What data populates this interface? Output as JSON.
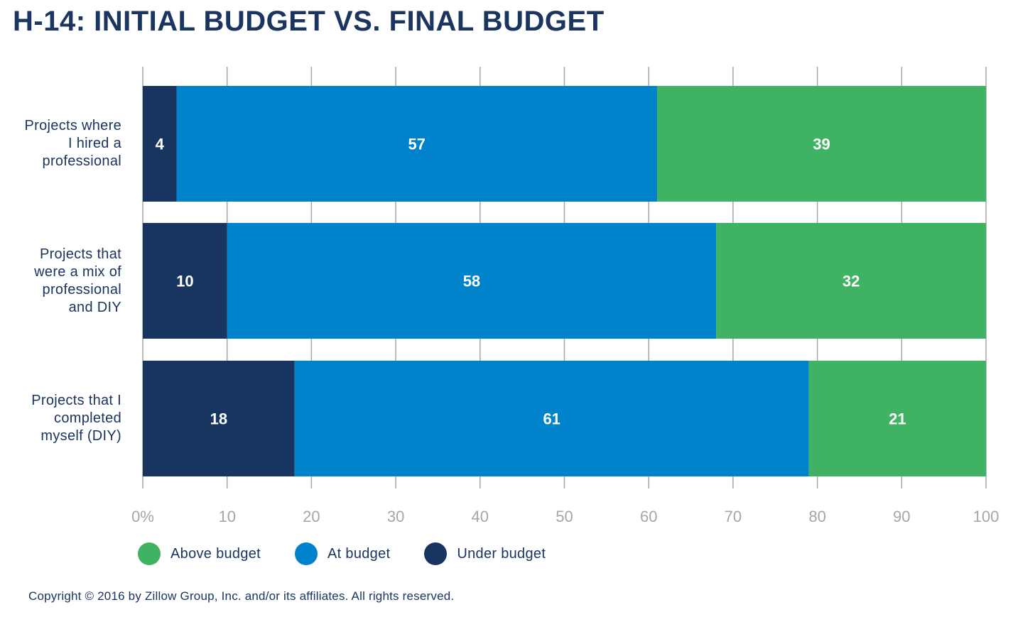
{
  "chart_data": {
    "type": "bar",
    "orientation": "horizontal",
    "stacked": true,
    "title": "H-14: INITIAL BUDGET VS. FINAL BUDGET",
    "categories": [
      "Projects where I hired a professional",
      "Projects that were a mix of professional and DIY",
      "Projects that I completed myself (DIY)"
    ],
    "category_lines": [
      [
        "Projects where",
        "I hired a",
        "professional"
      ],
      [
        "Projects that",
        "were a mix of",
        "professional",
        "and DIY"
      ],
      [
        "Projects that I",
        "completed",
        "myself (DIY)"
      ]
    ],
    "series": [
      {
        "name": "Under budget",
        "color": "#17355f",
        "values": [
          4,
          10,
          18
        ]
      },
      {
        "name": "At budget",
        "color": "#0083cb",
        "values": [
          57,
          58,
          61
        ]
      },
      {
        "name": "Above budget",
        "color": "#3fb263",
        "values": [
          39,
          32,
          21
        ]
      }
    ],
    "xlim": [
      0,
      100
    ],
    "xticks": [
      0,
      10,
      20,
      30,
      40,
      50,
      60,
      70,
      80,
      90,
      100
    ],
    "xtick_labels": [
      "0%",
      "10",
      "20",
      "30",
      "40",
      "50",
      "60",
      "70",
      "80",
      "90",
      "100"
    ],
    "grid": true,
    "legend": [
      "Above budget",
      "At budget",
      "Under budget"
    ],
    "legend_position": "bottom-left"
  },
  "copyright": "Copyright © 2016 by Zillow Group, Inc. and/or its affiliates. All rights reserved."
}
